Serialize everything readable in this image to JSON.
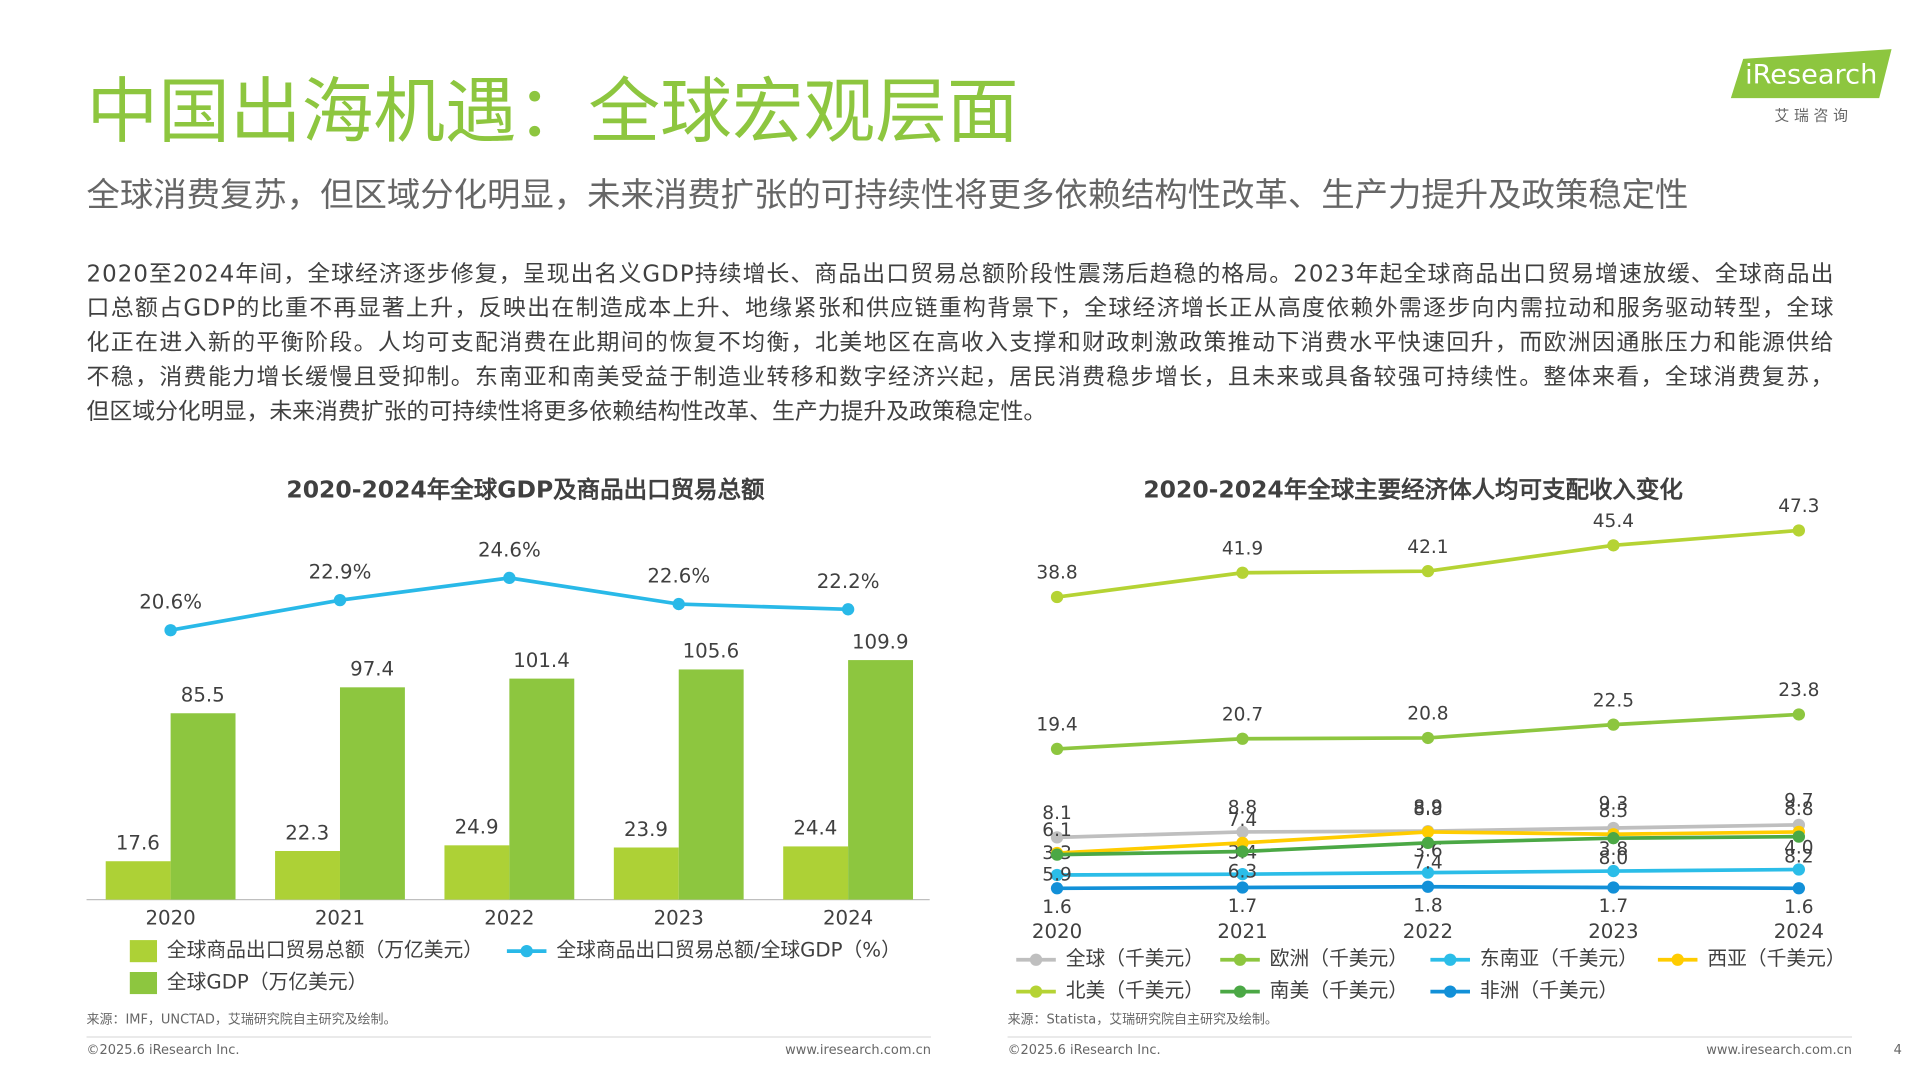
{
  "header": {
    "title": "中国出海机遇：全球宏观层面",
    "subtitle": "全球消费复苏，但区域分化明显，未来消费扩张的可持续性将更多依赖结构性改革、生产力提升及政策稳定性",
    "logo": "iResearch",
    "logo_cn": "艾 瑞 咨 询"
  },
  "body": {
    "lines": [
      "2020至2024年间，全球经济逐步修复，呈现出名义GDP持续增长、商品出口贸易总额阶段性震荡后趋稳的格局。2023年起全球商品出口贸易增速放缓、全球商品出",
      "口总额占GDP的比重不再显著上升，反映出在制造成本上升、地缘紧张和供应链重构背景下，全球经济增长正从高度依赖外需逐步向内需拉动和服务驱动转型，全球",
      "化正在进入新的平衡阶段。人均可支配消费在此期间的恢复不均衡，北美地区在高收入支撑和财政刺激政策推动下消费水平快速回升，而欧洲因通胀压力和能源供给",
      "不稳，消费能力增长缓慢且受抑制。东南亚和南美受益于制造业转移和数字经济兴起，居民消费稳步增长，且未来或具备较强可持续性。整体来看，全球消费复苏，",
      "但区域分化明显，未来消费扩张的可持续性将更多依赖结构性改革、生产力提升及政策稳定性。"
    ]
  },
  "chart_data": [
    {
      "type": "bar",
      "title": "2020-2024年全球GDP及商品出口贸易总额",
      "categories": [
        "2020",
        "2021",
        "2022",
        "2023",
        "2024"
      ],
      "series": [
        {
          "name": "全球商品出口贸易总额（万亿美元）",
          "color": "#add136",
          "values": [
            17.6,
            22.3,
            24.9,
            23.9,
            24.4
          ]
        },
        {
          "name": "全球GDP（万亿美元）",
          "color": "#8dc63f",
          "values": [
            85.5,
            97.4,
            101.4,
            105.6,
            109.9
          ]
        },
        {
          "name": "全球商品出口贸易总额/全球GDP（%）",
          "color": "#29b9e8",
          "type": "line",
          "axis": "y2",
          "values": [
            20.6,
            22.9,
            24.6,
            22.6,
            22.2
          ],
          "value_labels": [
            "20.6%",
            "22.9%",
            "24.6%",
            "22.6%",
            "22.2%"
          ]
        }
      ],
      "ylim": [
        0,
        165
      ],
      "y2lim": [
        0,
        27.5
      ],
      "source": "来源：IMF，UNCTAD，艾瑞研究院自主研究及绘制。"
    },
    {
      "type": "line",
      "title": "2020-2024年全球主要经济体人均可支配收入变化",
      "categories": [
        "2020",
        "2021",
        "2022",
        "2023",
        "2024"
      ],
      "series": [
        {
          "name": "全球（千美元）",
          "color": "#bfbfbf",
          "values": [
            8.1,
            8.8,
            8.9,
            9.3,
            9.7
          ]
        },
        {
          "name": "欧洲（千美元）",
          "color": "#8dc63f",
          "values": [
            19.4,
            20.7,
            20.8,
            22.5,
            23.8
          ]
        },
        {
          "name": "东南亚（千美元）",
          "color": "#2bbde8",
          "values": [
            3.3,
            3.4,
            3.6,
            3.8,
            4
          ],
          "value_labels": [
            "3.3",
            "3.4",
            "3.6",
            "3.8",
            "4.0"
          ]
        },
        {
          "name": "西亚（千美元）",
          "color": "#ffcc00",
          "values": [
            6.1,
            7.4,
            8.8,
            8.5,
            8.8
          ]
        },
        {
          "name": "北美（千美元）",
          "color": "#b5d334",
          "values": [
            38.8,
            41.9,
            42.1,
            45.4,
            47.3
          ]
        },
        {
          "name": "南美（千美元）",
          "color": "#4ba845",
          "values": [
            5.9,
            6.3,
            7.4,
            8,
            8.2
          ],
          "value_labels": [
            "5.9",
            "6.3",
            "7.4",
            "8.0",
            "8.2"
          ]
        },
        {
          "name": "非洲（千美元）",
          "color": "#1290d8",
          "values": [
            1.6,
            1.7,
            1.8,
            1.7,
            1.6
          ]
        }
      ],
      "ylim": [
        0,
        50
      ],
      "source": "来源：Statista，艾瑞研究院自主研究及绘制。"
    }
  ],
  "footer": {
    "left": "©2025.6 iResearch Inc.",
    "right": "www.iresearch.com.cn",
    "page": "4"
  }
}
